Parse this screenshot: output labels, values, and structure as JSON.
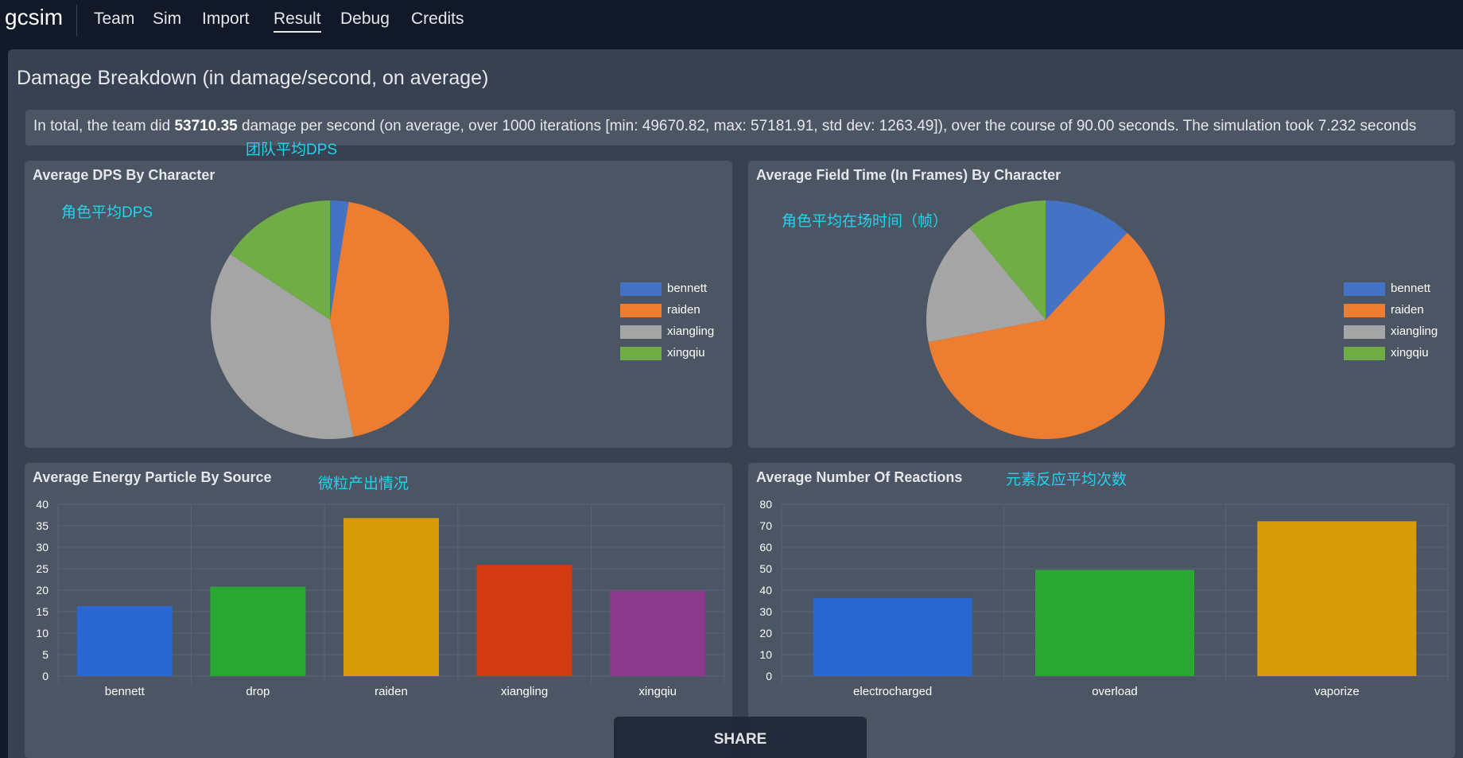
{
  "nav": {
    "brand": "gcsim",
    "links": [
      {
        "label": "Team"
      },
      {
        "label": "Sim"
      },
      {
        "label": "Import"
      },
      {
        "label": "Result"
      },
      {
        "label": "Debug"
      },
      {
        "label": "Credits"
      }
    ],
    "active": "Result"
  },
  "page": {
    "title": "Damage Breakdown (in damage/second, on average)"
  },
  "summary": {
    "prefix": "In total, the team did ",
    "dps": "53710.35",
    "suffix": " damage per second (on average, over 1000 iterations [min: 49670.82, max: 57181.91, std dev: 1263.49]), over the course of 90.00 seconds. The simulation took 7.232 seconds"
  },
  "annotations": {
    "team_dps": "团队平均DPS",
    "char_dps": "角色平均DPS",
    "field_time": "角色平均在场时间（帧）",
    "particles": "微粒产出情况",
    "reactions": "元素反应平均次数"
  },
  "cards": {
    "dps_title": "Average DPS By Character",
    "field_title": "Average Field Time (In Frames) By Character",
    "energy_title": "Average Energy Particle By Source",
    "reactions_title": "Average Number Of Reactions"
  },
  "colors": {
    "bennett": "#4472c4",
    "raiden": "#ed7d31",
    "xiangling": "#a5a5a5",
    "xingqiu": "#70ad47"
  },
  "share": {
    "label": "SHARE"
  },
  "chart_data": [
    {
      "type": "pie",
      "title": "Average DPS By Character",
      "categories": [
        "bennett",
        "raiden",
        "xiangling",
        "xingqiu"
      ],
      "values": [
        1350,
        23800,
        20100,
        8460
      ],
      "colors": [
        "#4472c4",
        "#ed7d31",
        "#a5a5a5",
        "#70ad47"
      ],
      "legend": "right"
    },
    {
      "type": "pie",
      "title": "Average Field Time (In Frames) By Character",
      "categories": [
        "bennett",
        "raiden",
        "xiangling",
        "xingqiu"
      ],
      "values": [
        12,
        60,
        17,
        11
      ],
      "colors": [
        "#4472c4",
        "#ed7d31",
        "#a5a5a5",
        "#70ad47"
      ],
      "legend": "right"
    },
    {
      "type": "bar",
      "title": "Average Energy Particle By Source",
      "categories": [
        "bennett",
        "drop",
        "raiden",
        "xiangling",
        "xingqiu"
      ],
      "values": [
        16.3,
        20.8,
        36.8,
        25.9,
        19.9
      ],
      "colors": [
        "#2a67d1",
        "#2aa834",
        "#d89c0a",
        "#d13a12",
        "#8b3a8e"
      ],
      "ylim": [
        0,
        40
      ],
      "yticks": [
        0,
        5,
        10,
        15,
        20,
        25,
        30,
        35,
        40
      ],
      "grid": true
    },
    {
      "type": "bar",
      "title": "Average Number Of Reactions",
      "categories": [
        "electrocharged",
        "overload",
        "vaporize"
      ],
      "values": [
        36.3,
        49.4,
        72.1
      ],
      "colors": [
        "#2a67d1",
        "#2aa834",
        "#d89c0a"
      ],
      "ylim": [
        0,
        80
      ],
      "yticks": [
        0,
        10,
        20,
        30,
        40,
        50,
        60,
        70,
        80
      ],
      "grid": true
    }
  ]
}
